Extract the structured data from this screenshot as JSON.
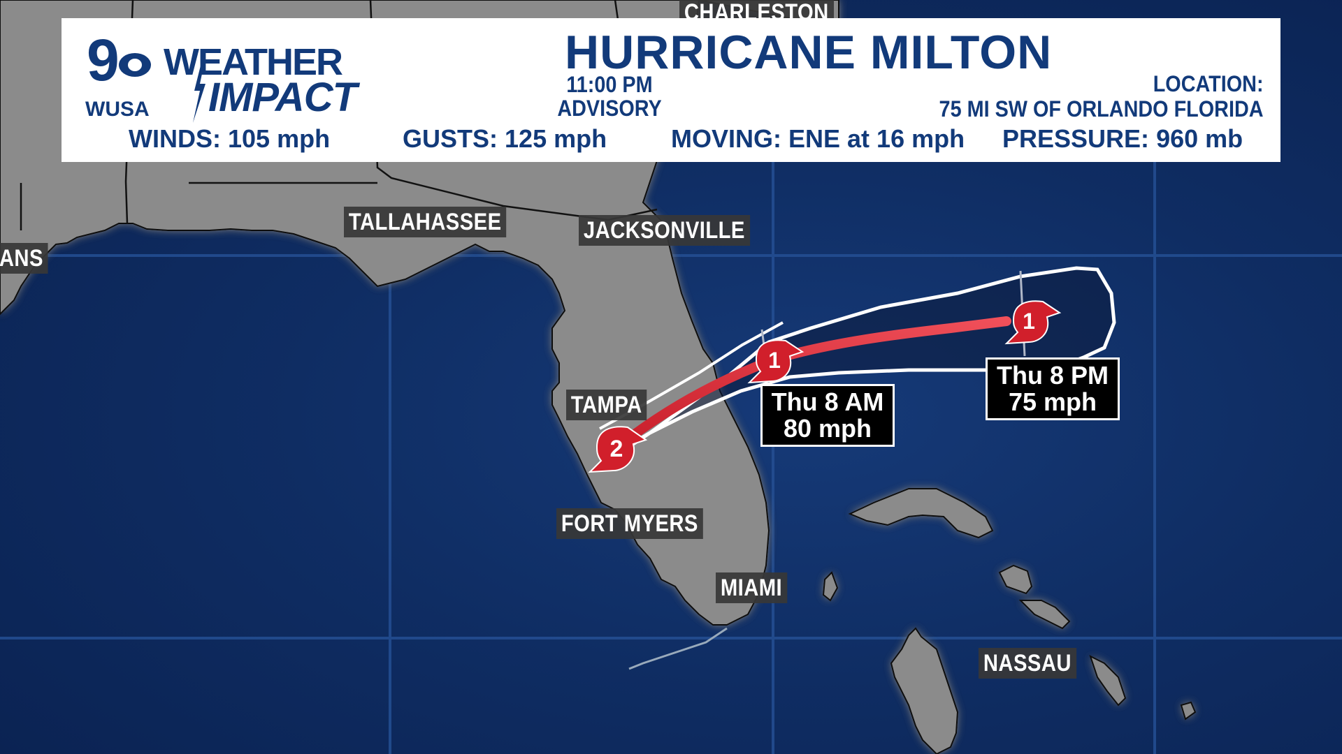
{
  "brand": {
    "channel_number": "9",
    "station": "WUSA",
    "logo_word_1": "WEATHER",
    "logo_word_2": "IMPACT",
    "color_primary": "#123a7a"
  },
  "advisory": {
    "storm_name": "HURRICANE MILTON",
    "time_line_1": "11:00 PM",
    "time_line_2": "ADVISORY",
    "location_label": "LOCATION:",
    "location_value": "75 MI SW OF ORLANDO FLORIDA"
  },
  "stats": [
    {
      "label": "WINDS:",
      "value": "105 mph"
    },
    {
      "label": "GUSTS:",
      "value": "125 mph"
    },
    {
      "label": "MOVING:",
      "value": "ENE at 16 mph"
    },
    {
      "label": "PRESSURE:",
      "value": "960 mb"
    }
  ],
  "cities": {
    "charleston": "CHARLESTON",
    "tallahassee": "TALLAHASSEE",
    "jacksonville": "JACKSONVILLE",
    "new_orleans_partial": "ANS",
    "tampa": "TAMPA",
    "fort_myers": "FORT MYERS",
    "miami": "MIAMI",
    "nassau": "NASSAU"
  },
  "track": {
    "points": [
      {
        "category": "2"
      },
      {
        "category": "1"
      },
      {
        "category": "1"
      }
    ],
    "forecasts": [
      {
        "time": "Thu 8 AM",
        "wind": "80 mph"
      },
      {
        "time": "Thu 8 PM",
        "wind": "75 mph"
      }
    ],
    "cone_color": "#ffffff",
    "track_color": "#e8343e",
    "land_color": "#8a8a8a",
    "ocean_color": "#0f2d63"
  }
}
